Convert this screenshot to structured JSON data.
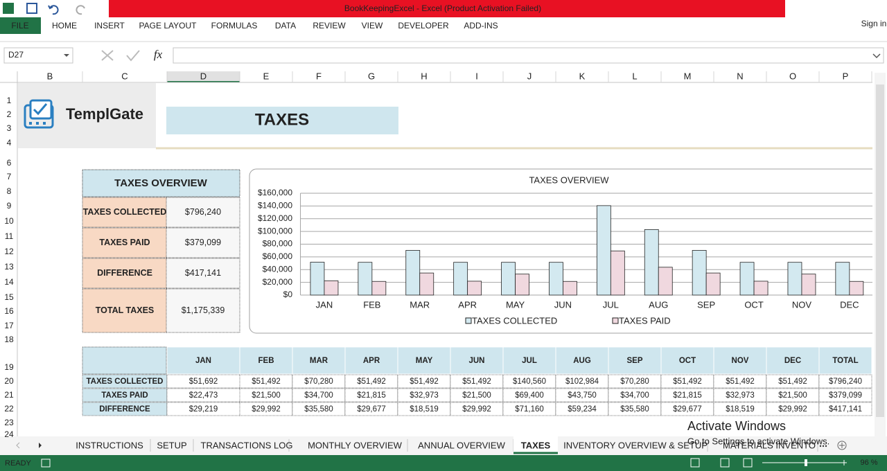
{
  "window": {
    "title": "BookKeepingExcel -  Excel (Product Activation Failed)",
    "sign_in": "Sign in"
  },
  "ribbon_tabs": [
    "FILE",
    "HOME",
    "INSERT",
    "PAGE LAYOUT",
    "FORMULAS",
    "DATA",
    "REVIEW",
    "VIEW",
    "DEVELOPER",
    "ADD-INS"
  ],
  "name_box": "D27",
  "fx": "fx",
  "columns": [
    "B",
    "C",
    "D",
    "E",
    "F",
    "G",
    "H",
    "I",
    "J",
    "K",
    "L",
    "M",
    "N",
    "O",
    "P"
  ],
  "rows": [
    1,
    2,
    3,
    4,
    6,
    7,
    8,
    9,
    10,
    11,
    12,
    13,
    14,
    15,
    16,
    17,
    18,
    19,
    20,
    21,
    22,
    23,
    24
  ],
  "logo": "TemplGate",
  "sheet_title": "TAXES",
  "overview": {
    "title": "TAXES OVERVIEW",
    "rows": [
      [
        "TAXES COLLECTED",
        "$796,240"
      ],
      [
        "TAXES PAID",
        "$379,099"
      ],
      [
        "DIFFERENCE",
        "$417,141"
      ],
      [
        "TOTAL TAXES",
        "$1,175,339"
      ]
    ]
  },
  "chart_data": {
    "type": "bar",
    "title": "TAXES OVERVIEW",
    "categories": [
      "JAN",
      "FEB",
      "MAR",
      "APR",
      "MAY",
      "JUN",
      "JUL",
      "AUG",
      "SEP",
      "OCT",
      "NOV",
      "DEC"
    ],
    "series": [
      {
        "name": "TAXES COLLECTED",
        "color": "#d3e9f0",
        "values": [
          51692,
          51492,
          70280,
          51492,
          51492,
          51492,
          140560,
          102984,
          70280,
          51492,
          51492,
          51492
        ]
      },
      {
        "name": "TAXES PAID",
        "color": "#f0d8df",
        "values": [
          22473,
          21500,
          34700,
          21815,
          32973,
          21500,
          69400,
          43750,
          34700,
          21815,
          32973,
          21500
        ]
      }
    ],
    "ylim": [
      0,
      160000
    ],
    "yticks": [
      {
        "value": 0,
        "label": "$0"
      },
      {
        "value": 20000,
        "label": "$20,000"
      },
      {
        "value": 40000,
        "label": "$40,000"
      },
      {
        "value": 60000,
        "label": "$60,000"
      },
      {
        "value": 80000,
        "label": "$80,000"
      },
      {
        "value": 100000,
        "label": "$100,000"
      },
      {
        "value": 120000,
        "label": "$120,000"
      },
      {
        "value": 140000,
        "label": "$140,000"
      },
      {
        "value": 160000,
        "label": "$160,000"
      }
    ],
    "grid": true,
    "legend": "bottom"
  },
  "table": {
    "header": [
      "JAN",
      "FEB",
      "MAR",
      "APR",
      "MAY",
      "JUN",
      "JUL",
      "AUG",
      "SEP",
      "OCT",
      "NOV",
      "DEC",
      "TOTAL"
    ],
    "rows": [
      [
        "TAXES COLLECTED",
        "$51,692",
        "$51,492",
        "$70,280",
        "$51,492",
        "$51,492",
        "$51,492",
        "$140,560",
        "$102,984",
        "$70,280",
        "$51,492",
        "$51,492",
        "$51,492",
        "$796,240"
      ],
      [
        "TAXES PAID",
        "$22,473",
        "$21,500",
        "$34,700",
        "$21,815",
        "$32,973",
        "$21,500",
        "$69,400",
        "$43,750",
        "$34,700",
        "$21,815",
        "$32,973",
        "$21,500",
        "$379,099"
      ],
      [
        "DIFFERENCE",
        "$29,219",
        "$29,992",
        "$35,580",
        "$29,677",
        "$18,519",
        "$29,992",
        "$71,160",
        "$59,234",
        "$35,580",
        "$29,677",
        "$18,519",
        "$29,992",
        "$417,141"
      ]
    ]
  },
  "sheet_tabs": [
    "INSTRUCTIONS",
    "SETUP",
    "TRANSACTIONS LOG",
    "MONTHLY OVERVIEW",
    "ANNUAL OVERVIEW",
    "TAXES",
    "INVENTORY OVERVIEW & SETUP",
    "MATERIALS INVENTO"
  ],
  "watermark": [
    "Activate Windows",
    "Go to Settings to activate Windows."
  ],
  "status": {
    "ready": "READY",
    "zoom": "96 %"
  }
}
